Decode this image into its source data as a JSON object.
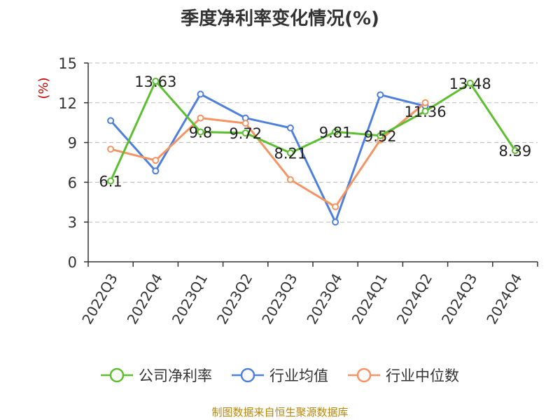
{
  "chart_data": {
    "type": "line",
    "title": "季度净利率变化情况(%)",
    "ylabel": "(%)",
    "ylim": [
      0,
      15
    ],
    "yticks": [
      0,
      3,
      6,
      9,
      12,
      15
    ],
    "grid": true,
    "legend_position": "bottom",
    "categories": [
      "2022Q3",
      "2022Q4",
      "2023Q1",
      "2023Q2",
      "2023Q3",
      "2023Q4",
      "2024Q1",
      "2024Q2",
      "2024Q3",
      "2024Q4"
    ],
    "series": [
      {
        "name": "公司净利率",
        "color": "#5bbf2f",
        "values": [
          6.1,
          13.63,
          9.8,
          9.72,
          8.21,
          9.81,
          9.52,
          11.36,
          13.48,
          8.39
        ],
        "labels": [
          "6.1",
          "13.63",
          "9.8",
          "9.72",
          "8.21",
          "9.81",
          "9.52",
          "11.36",
          "13.48",
          "8.39"
        ]
      },
      {
        "name": "行业均值",
        "color": "#4f7fdc",
        "values": [
          10.65,
          6.85,
          12.65,
          10.85,
          10.1,
          3.0,
          12.6,
          11.75,
          null,
          null
        ]
      },
      {
        "name": "行业中位数",
        "color": "#f59462",
        "values": [
          8.5,
          7.65,
          10.85,
          10.45,
          6.2,
          4.15,
          9.2,
          12.0,
          null,
          null
        ]
      }
    ]
  },
  "source": "制图数据来自恒生聚源数据库"
}
